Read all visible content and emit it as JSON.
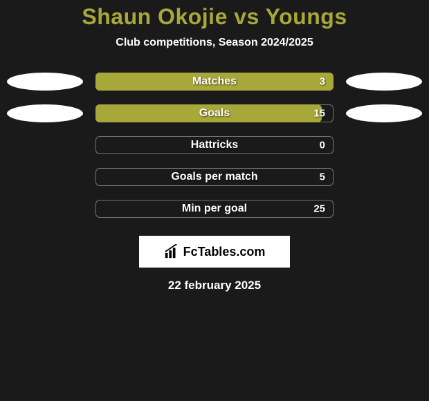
{
  "title": "Shaun Okojie vs Youngs",
  "subtitle": "Club competitions, Season 2024/2025",
  "title_color": "#a8a83a",
  "text_color": "#ffffff",
  "background_color": "#1a1a1a",
  "bar_bg_color": "#a8a83a",
  "bar_fill_color": "#a8a83a",
  "bar_border_color": "rgba(255,255,255,0.4)",
  "oval_color": "#ffffff",
  "stats": [
    {
      "label": "Matches",
      "value": "3",
      "fill_pct": 100,
      "show_ovals": true
    },
    {
      "label": "Goals",
      "value": "15",
      "fill_pct": 95,
      "show_ovals": true
    },
    {
      "label": "Hattricks",
      "value": "0",
      "fill_pct": 0,
      "show_ovals": false
    },
    {
      "label": "Goals per match",
      "value": "5",
      "fill_pct": 0,
      "show_ovals": false
    },
    {
      "label": "Min per goal",
      "value": "25",
      "fill_pct": 0,
      "show_ovals": false
    }
  ],
  "logo_text": "FcTables.com",
  "date_text": "22 february 2025"
}
